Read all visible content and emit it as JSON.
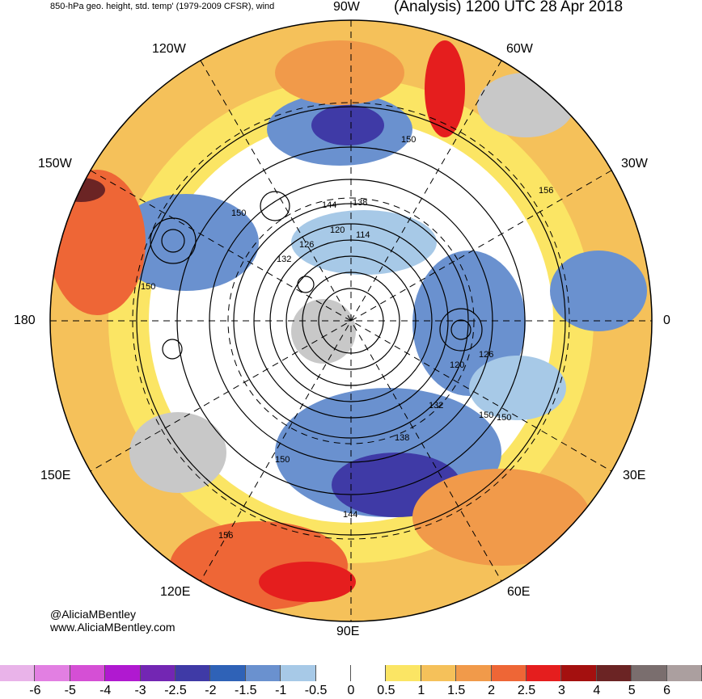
{
  "header": {
    "left": "850-hPa geo. height, std. temp' (1979-2009 CFSR), wind",
    "right": "(Analysis) 1200 UTC 28 Apr 2018"
  },
  "map": {
    "projection": "north polar stereographic",
    "longitude_labels": [
      "90W",
      "120W",
      "60W",
      "150W",
      "30W",
      "180",
      "0",
      "150E",
      "30E",
      "120E",
      "60E",
      "90E"
    ],
    "contour_labels": [
      "150",
      "144",
      "138",
      "120",
      "114",
      "132",
      "126",
      "156",
      "150",
      "120",
      "126",
      "132",
      "150",
      "138",
      "144",
      "150",
      "156",
      "150",
      "150"
    ]
  },
  "credit": {
    "line1": "@AliciaMBentley",
    "line2": "www.AliciaMBentley.com"
  },
  "colorbar": {
    "colors": [
      "#e9b3e9",
      "#e27fe2",
      "#d54fd5",
      "#b019d0",
      "#7326b3",
      "#3f3aa6",
      "#2f62b7",
      "#6a91cf",
      "#a7c9e7",
      "#ffffff",
      "#ffffff",
      "#fbe564",
      "#f5c15a",
      "#f19a4a",
      "#ee6636",
      "#e51e1e",
      "#a4100f",
      "#6b2424",
      "#7a6e6e",
      "#ab9f9f"
    ],
    "ticks": [
      "-6",
      "-5",
      "-4",
      "-3",
      "-2.5",
      "-2",
      "-1.5",
      "-1",
      "-0.5",
      "0",
      "0.5",
      "1",
      "1.5",
      "2",
      "2.5",
      "3",
      "4",
      "5",
      "6"
    ]
  }
}
